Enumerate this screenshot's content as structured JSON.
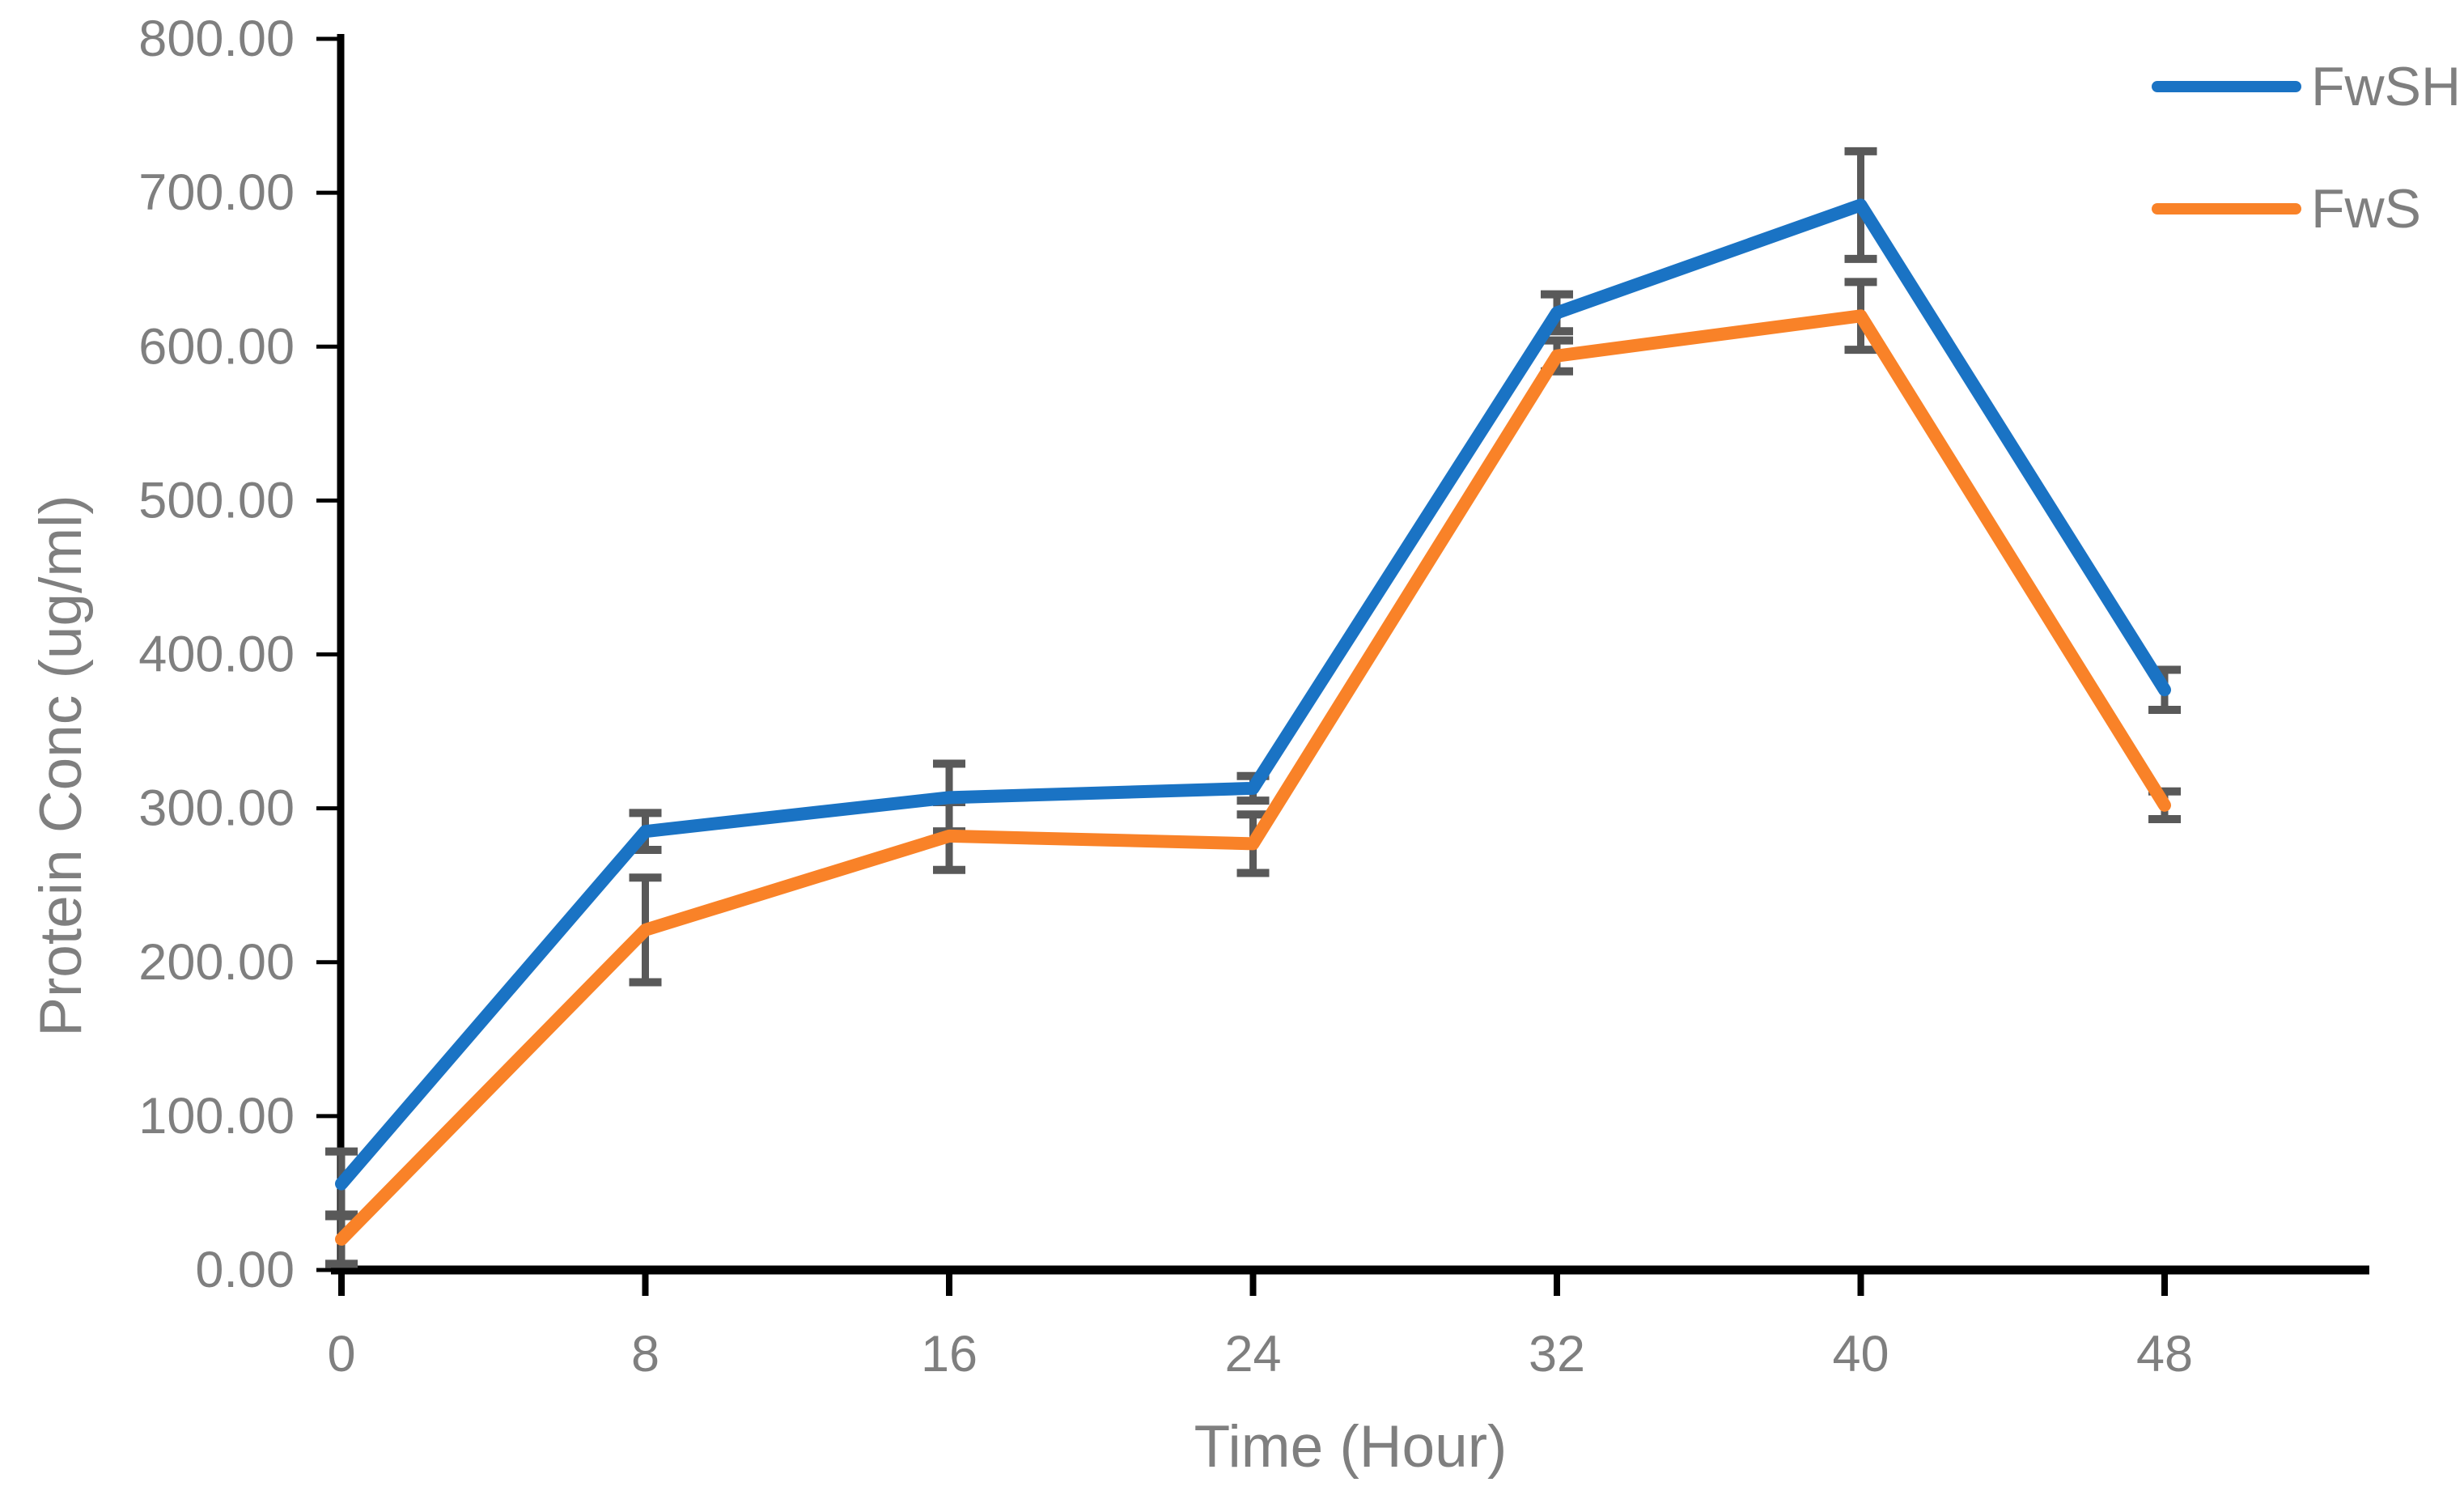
{
  "chart_data": {
    "type": "line",
    "title": "",
    "xlabel": "Time (Hour)",
    "ylabel": "Protein Conc (ug/ml)",
    "x": [
      0,
      8,
      16,
      24,
      32,
      40,
      48
    ],
    "x_tick_labels": [
      "0",
      "8",
      "16",
      "24",
      "32",
      "40",
      "48"
    ],
    "y_tick_labels": [
      "0.00",
      "100.00",
      "200.00",
      "300.00",
      "400.00",
      "500.00",
      "600.00",
      "700.00",
      "800.00"
    ],
    "ylim": [
      0,
      800
    ],
    "y_tick_step": 100,
    "grid": false,
    "error_bars": true,
    "legend_position": "top-right",
    "series": [
      {
        "name": "FwSH",
        "color": "#1A73C4",
        "values": [
          56,
          285,
          307,
          313,
          622,
          692,
          377
        ],
        "errors": [
          21,
          12,
          22,
          8,
          12,
          35,
          13
        ]
      },
      {
        "name": "FwS",
        "color": "#F98228",
        "values": [
          20,
          221,
          282,
          277,
          594,
          620,
          302
        ],
        "errors": [
          16,
          34,
          22,
          19,
          10,
          22,
          9
        ]
      }
    ],
    "colors": {
      "axis": "#000000",
      "tick_label": "#7F7F7F",
      "axis_title": "#7F7F7F",
      "legend_text": "#7F7F7F",
      "error_bar": "#595959",
      "background": "#FFFFFF"
    }
  }
}
